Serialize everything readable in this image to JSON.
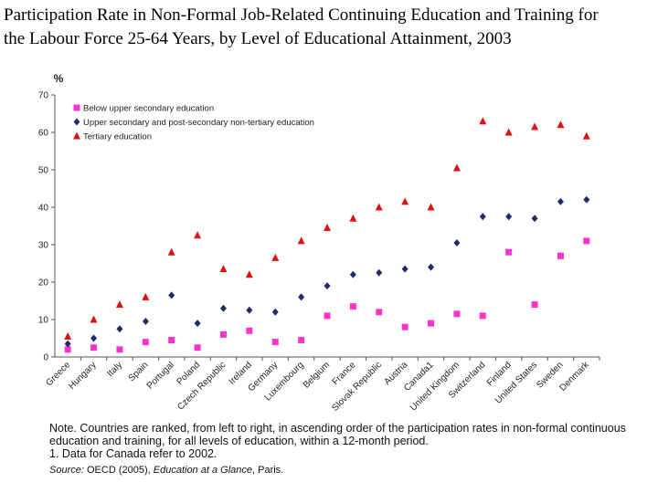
{
  "title_lines": [
    "Participation Rate in Non-Formal Job-Related Continuing Education and Training for",
    "the Labour Force 25-64 Years, by Level of Educational Attainment, 2003"
  ],
  "note": {
    "text": "Note. Countries are ranked, from left to right, in ascending order of the participation rates in non-formal continuous education and training, for all levels of education, within a 12-month period.",
    "footnote": "1. Data for Canada refer to 2002.",
    "source_label": "Source:",
    "source_org": "OECD (2005),",
    "source_title": "Education at a Glance",
    "source_place": ", Paris."
  },
  "chart_data": {
    "type": "scatter",
    "ylabel": "%",
    "ylim": [
      0,
      70
    ],
    "yticks": [
      0,
      10,
      20,
      30,
      40,
      50,
      60,
      70
    ],
    "grid": false,
    "legend_position": "top-left",
    "categories": [
      "Greece",
      "Hungary",
      "Italy",
      "Spain",
      "Portugal",
      "Poland",
      "Czech Republic",
      "Ireland",
      "Germany",
      "Luxembourg",
      "Belgium",
      "France",
      "Slovak Republic",
      "Austria",
      "Canada1",
      "United Kingdom",
      "Switzerland",
      "Finland",
      "United States",
      "Sweden",
      "Denmark"
    ],
    "series": [
      {
        "name": "Below upper secondary education",
        "marker": "square",
        "color": "#ff33cc",
        "values": [
          2,
          2.5,
          2,
          4,
          4.5,
          2.5,
          6,
          7,
          4,
          4.5,
          11,
          13.5,
          12,
          8,
          9,
          11.5,
          11,
          28,
          14,
          27,
          31
        ]
      },
      {
        "name": "Upper secondary and post-secondary non-tertiary education",
        "marker": "diamond",
        "color": "#1f2a6b",
        "values": [
          3.5,
          5,
          7.5,
          9.5,
          16.5,
          9,
          13,
          12.5,
          12,
          16,
          19,
          22,
          22.5,
          23.5,
          24,
          30.5,
          37.5,
          37.5,
          37,
          41.5,
          42
        ]
      },
      {
        "name": "Tertiary education",
        "marker": "triangle",
        "color": "#dd1111",
        "values": [
          5.5,
          10,
          14,
          16,
          28,
          32.5,
          23.5,
          22,
          26.5,
          31,
          34.5,
          37,
          40,
          41.5,
          40,
          50.5,
          63,
          60,
          61.5,
          62,
          59
        ]
      }
    ]
  }
}
